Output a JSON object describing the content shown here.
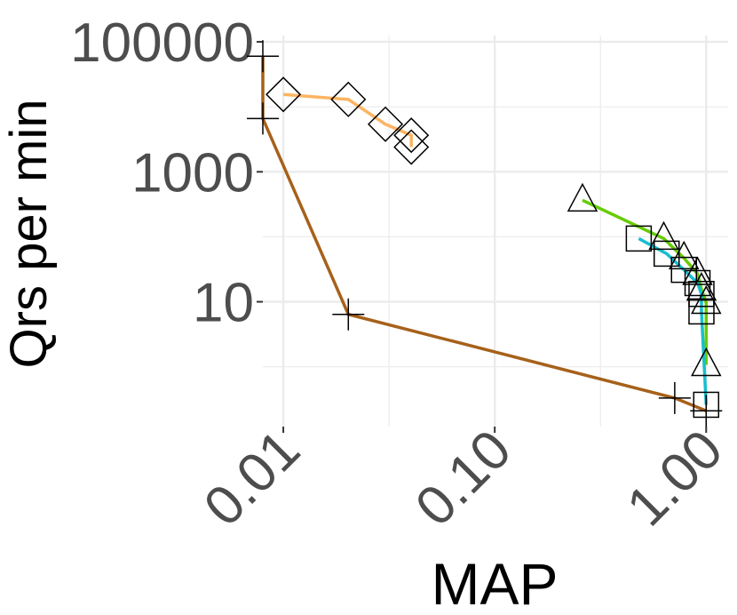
{
  "chart_data": {
    "type": "line",
    "x_label": "MAP",
    "y_label": "Qrs per min",
    "xscale": "log",
    "yscale": "log",
    "grid": true,
    "xlim": [
      0.008,
      1.27
    ],
    "ylim": [
      0.12,
      125000
    ],
    "xticks": [
      0.01,
      {
        "value": 0.1,
        "label": "0.10"
      },
      {
        "value": 1,
        "label": "1.00"
      }
    ],
    "yticks": [
      10,
      1000,
      100000
    ],
    "series": [
      {
        "color": "#fdb462",
        "marker": "diamond",
        "x": [
          0.01,
          0.0203,
          0.0304,
          0.0403,
          0.0403
        ],
        "values": [
          15500,
          13000,
          5400,
          3650,
          2400
        ]
      },
      {
        "color": "#a6611a",
        "marker": "plus",
        "x": [
          0.008,
          0.008,
          0.0203,
          0.71,
          1.0
        ],
        "values": [
          60000,
          6600,
          6.4,
          0.33,
          0.21
        ]
      },
      {
        "color": "#66cc00",
        "marker": "triangle",
        "x": [
          0.26,
          0.63,
          0.785,
          0.91,
          0.95,
          1.0,
          1.0
        ],
        "values": [
          365,
          94,
          47,
          27,
          15.5,
          9.7,
          1.07
        ]
      },
      {
        "color": "#17becf",
        "marker": "square",
        "x": [
          0.48,
          0.65,
          0.785,
          0.91,
          0.95,
          0.95,
          1.0
        ],
        "values": [
          94,
          55,
          31,
          19.4,
          13.2,
          7.1,
          0.26
        ]
      }
    ]
  }
}
